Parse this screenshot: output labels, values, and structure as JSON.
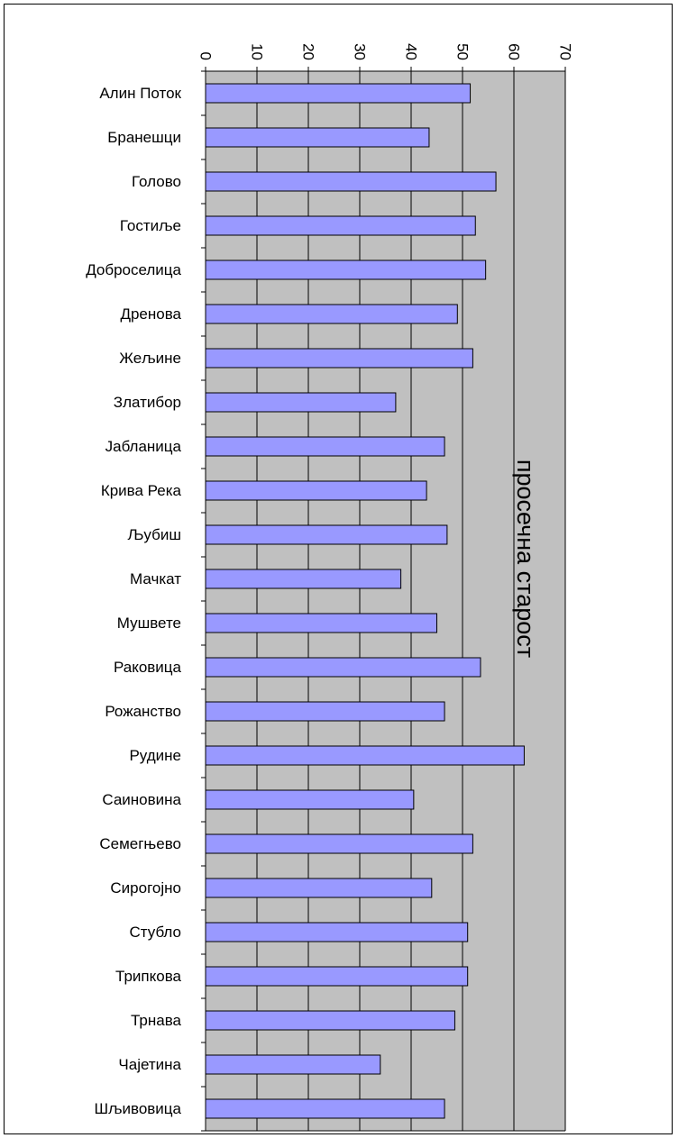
{
  "chart_data": {
    "type": "bar",
    "orientation": "horizontal",
    "categories": [
      "Алин Поток",
      "Бранешци",
      "Голово",
      "Гостиље",
      "Доброселица",
      "Дренова",
      "Жељине",
      "Златибор",
      "Јабланица",
      "Крива Река",
      "Љубиш",
      "Мачкат",
      "Мушвете",
      "Раковица",
      "Рожанство",
      "Рудине",
      "Саиновина",
      "Семегњево",
      "Сирогојно",
      "Стубло",
      "Трипкова",
      "Трнава",
      "Чајетина",
      "Шљивовица"
    ],
    "series": [
      {
        "values": [
          51.5,
          43.5,
          56.5,
          52.5,
          54.5,
          49.0,
          52.0,
          37.0,
          46.5,
          43.0,
          47.0,
          38.0,
          45.0,
          53.5,
          46.5,
          62.0,
          40.5,
          52.0,
          44.0,
          51.0,
          51.0,
          48.5,
          34.0,
          46.5
        ]
      }
    ],
    "xlim": [
      0,
      70
    ],
    "ticks": [
      "0",
      "10",
      "20",
      "30",
      "40",
      "50",
      "60",
      "70"
    ],
    "value_axis_label": "просечна старост",
    "grid": true,
    "plot_background": "#c0c0c0",
    "bar_color": "#9999ff",
    "bar_border": "#000000",
    "value_axis_position": "top",
    "tick_label_rotation_deg": 90
  }
}
